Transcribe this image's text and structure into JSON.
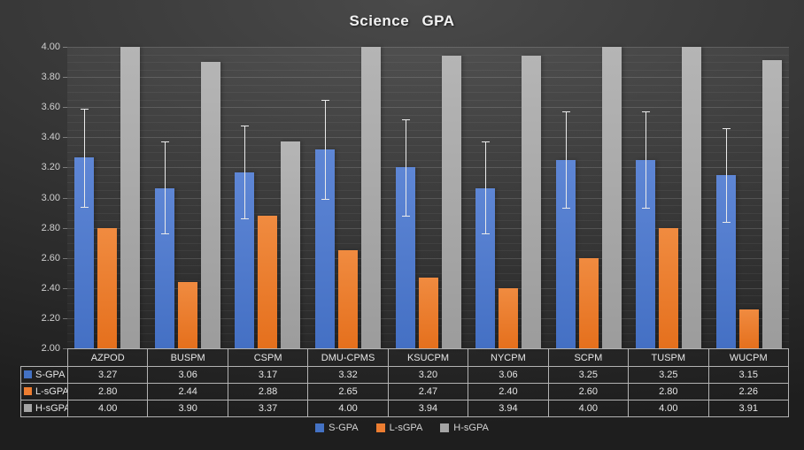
{
  "chart_data": {
    "type": "bar",
    "title": "Science GPA",
    "categories": [
      "AZPOD",
      "BUSPM",
      "CSPM",
      "DMU-CPMS",
      "KSUCPM",
      "NYCPM",
      "SCPM",
      "TUSPM",
      "WUCPM"
    ],
    "series": [
      {
        "name": "S-GPA",
        "color": "#4472C4",
        "values": [
          3.27,
          3.06,
          3.17,
          3.32,
          3.2,
          3.06,
          3.25,
          3.25,
          3.15
        ]
      },
      {
        "name": "L-sGPA",
        "color": "#ED7D31",
        "values": [
          2.8,
          2.44,
          2.88,
          2.65,
          2.47,
          2.4,
          2.6,
          2.8,
          2.26
        ]
      },
      {
        "name": "H-sGPA",
        "color": "#A5A5A5",
        "values": [
          4.0,
          3.9,
          3.37,
          4.0,
          3.94,
          3.94,
          4.0,
          4.0,
          3.91
        ]
      }
    ],
    "error_bars": {
      "series": "S-GPA",
      "high": [
        3.59,
        3.37,
        3.48,
        3.65,
        3.52,
        3.37,
        3.57,
        3.57,
        3.46
      ],
      "low": [
        2.94,
        2.76,
        2.86,
        2.99,
        2.88,
        2.76,
        2.93,
        2.93,
        2.84
      ]
    },
    "ylim": [
      2.0,
      4.0
    ],
    "y_ticks": [
      "2.00",
      "2.20",
      "2.40",
      "2.60",
      "2.80",
      "3.00",
      "3.20",
      "3.40",
      "3.60",
      "3.80",
      "4.00"
    ],
    "minor_tick_step": 0.05,
    "grid": true,
    "legend_position": "bottom",
    "data_table_shown": true
  }
}
